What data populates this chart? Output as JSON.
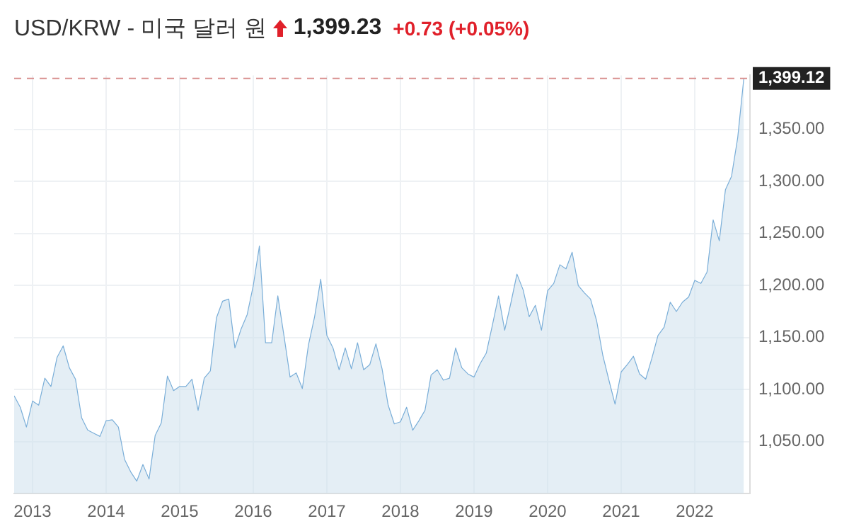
{
  "chart_data": {
    "type": "area",
    "title": "USD/KRW - 미국 달러 원",
    "annotations": [
      "1,399.23",
      "+0.73 (+0.05%)"
    ],
    "x": [
      "2012-10",
      "2012-11",
      "2012-12",
      "2013-01",
      "2013-02",
      "2013-03",
      "2013-04",
      "2013-05",
      "2013-06",
      "2013-07",
      "2013-08",
      "2013-09",
      "2013-10",
      "2013-11",
      "2013-12",
      "2014-01",
      "2014-02",
      "2014-03",
      "2014-04",
      "2014-05",
      "2014-06",
      "2014-07",
      "2014-08",
      "2014-09",
      "2014-10",
      "2014-11",
      "2014-12",
      "2015-01",
      "2015-02",
      "2015-03",
      "2015-04",
      "2015-05",
      "2015-06",
      "2015-07",
      "2015-08",
      "2015-09",
      "2015-10",
      "2015-11",
      "2015-12",
      "2016-01",
      "2016-02",
      "2016-03",
      "2016-04",
      "2016-05",
      "2016-06",
      "2016-07",
      "2016-08",
      "2016-09",
      "2016-10",
      "2016-11",
      "2016-12",
      "2017-01",
      "2017-02",
      "2017-03",
      "2017-04",
      "2017-05",
      "2017-06",
      "2017-07",
      "2017-08",
      "2017-09",
      "2017-10",
      "2017-11",
      "2017-12",
      "2018-01",
      "2018-02",
      "2018-03",
      "2018-04",
      "2018-05",
      "2018-06",
      "2018-07",
      "2018-08",
      "2018-09",
      "2018-10",
      "2018-11",
      "2018-12",
      "2019-01",
      "2019-02",
      "2019-03",
      "2019-04",
      "2019-05",
      "2019-06",
      "2019-07",
      "2019-08",
      "2019-09",
      "2019-10",
      "2019-11",
      "2019-12",
      "2020-01",
      "2020-02",
      "2020-03",
      "2020-04",
      "2020-05",
      "2020-06",
      "2020-07",
      "2020-08",
      "2020-09",
      "2020-10",
      "2020-11",
      "2020-12",
      "2021-01",
      "2021-02",
      "2021-03",
      "2021-04",
      "2021-05",
      "2021-06",
      "2021-07",
      "2021-08",
      "2021-09",
      "2021-10",
      "2021-11",
      "2021-12",
      "2022-01",
      "2022-02",
      "2022-03",
      "2022-04",
      "2022-05",
      "2022-06",
      "2022-07",
      "2022-08",
      "2022-09"
    ],
    "series": [
      {
        "color": "#7aaed8",
        "values": [
          1094,
          1083,
          1064,
          1089,
          1085,
          1111,
          1103,
          1131,
          1142,
          1121,
          1110,
          1073,
          1061,
          1058,
          1055,
          1070,
          1071,
          1064,
          1033,
          1021,
          1012,
          1028,
          1014,
          1056,
          1068,
          1113,
          1099,
          1103,
          1103,
          1110,
          1080,
          1111,
          1118,
          1169,
          1185,
          1187,
          1140,
          1158,
          1172,
          1200,
          1238,
          1145,
          1145,
          1190,
          1152,
          1112,
          1116,
          1101,
          1143,
          1170,
          1206,
          1152,
          1140,
          1119,
          1140,
          1120,
          1145,
          1119,
          1124,
          1144,
          1120,
          1085,
          1067,
          1069,
          1083,
          1061,
          1070,
          1080,
          1114,
          1119,
          1109,
          1111,
          1140,
          1121,
          1115,
          1112,
          1125,
          1135,
          1162,
          1190,
          1157,
          1183,
          1211,
          1196,
          1170,
          1181,
          1157,
          1195,
          1202,
          1220,
          1216,
          1232,
          1200,
          1193,
          1187,
          1166,
          1133,
          1109,
          1086,
          1117,
          1124,
          1132,
          1115,
          1110,
          1130,
          1152,
          1160,
          1184,
          1175,
          1184,
          1189,
          1205,
          1202,
          1213,
          1263,
          1243,
          1292,
          1305,
          1342,
          1399.12
        ]
      }
    ],
    "xlim": [
      "2012-10",
      "2022-10"
    ],
    "xticks": [
      {
        "value": "2013",
        "label": "2013"
      },
      {
        "value": "2014",
        "label": "2014"
      },
      {
        "value": "2015",
        "label": "2015"
      },
      {
        "value": "2016",
        "label": "2016"
      },
      {
        "value": "2017",
        "label": "2017"
      },
      {
        "value": "2018",
        "label": "2018"
      },
      {
        "value": "2019",
        "label": "2019"
      },
      {
        "value": "2020",
        "label": "2020"
      },
      {
        "value": "2021",
        "label": "2021"
      },
      {
        "value": "2022",
        "label": "2022"
      }
    ],
    "ylim": [
      1000,
      1402
    ],
    "yticks": [
      {
        "value": 1050,
        "label": "1,050.00"
      },
      {
        "value": 1100,
        "label": "1,100.00"
      },
      {
        "value": 1150,
        "label": "1,150.00"
      },
      {
        "value": 1200,
        "label": "1,200.00"
      },
      {
        "value": 1250,
        "label": "1,250.00"
      },
      {
        "value": 1300,
        "label": "1,300.00"
      },
      {
        "value": 1350,
        "label": "1,350.00"
      }
    ],
    "ref_lines": [
      {
        "axis": "y",
        "value": 1399.12,
        "label": "1,399.12",
        "color": "#d9908f",
        "line_style": "dashed"
      }
    ],
    "grid": true,
    "legend": false
  }
}
